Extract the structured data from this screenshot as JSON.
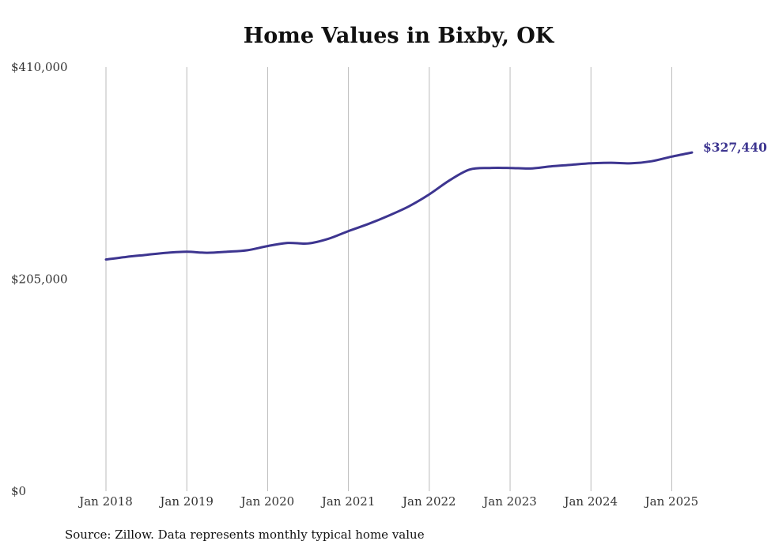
{
  "chart_data": {
    "type": "line",
    "title": "Home Values in Bixby, OK",
    "source": "Source: Zillow. Data represents monthly typical home value",
    "xlabel": "",
    "ylabel": "",
    "xlim": [
      "2018-01",
      "2025-04"
    ],
    "ylim": [
      0,
      410000
    ],
    "y_ticks": [
      0,
      205000,
      410000
    ],
    "y_tick_labels": [
      "$0",
      "$205,000",
      "$410,000"
    ],
    "x_ticks": [
      "2018-01",
      "2019-01",
      "2020-01",
      "2021-01",
      "2022-01",
      "2023-01",
      "2024-01",
      "2025-01"
    ],
    "x_tick_labels": [
      "Jan 2018",
      "Jan 2019",
      "Jan 2020",
      "Jan 2021",
      "Jan 2022",
      "Jan 2023",
      "Jan 2024",
      "Jan 2025"
    ],
    "grid": {
      "vertical": true,
      "horizontal": false
    },
    "legend": "none",
    "line_color": "#3d3590",
    "grid_color": "#bbbbbb",
    "end_label": "$327,440",
    "series": [
      {
        "x": [
          "2018-01",
          "2018-04",
          "2018-07",
          "2018-10",
          "2019-01",
          "2019-04",
          "2019-07",
          "2019-10",
          "2020-01",
          "2020-04",
          "2020-07",
          "2020-10",
          "2021-01",
          "2021-04",
          "2021-07",
          "2021-10",
          "2022-01",
          "2022-04",
          "2022-07",
          "2022-10",
          "2023-01",
          "2023-04",
          "2023-07",
          "2023-10",
          "2024-01",
          "2024-04",
          "2024-07",
          "2024-10",
          "2025-01",
          "2025-04"
        ],
        "values": [
          224000,
          226500,
          228500,
          230500,
          231500,
          230500,
          231500,
          233000,
          237000,
          240000,
          239500,
          244000,
          251500,
          258500,
          266500,
          275500,
          287000,
          300500,
          311000,
          312500,
          312500,
          312000,
          314000,
          315500,
          317000,
          317500,
          317000,
          319000,
          323500,
          327440
        ]
      }
    ]
  }
}
